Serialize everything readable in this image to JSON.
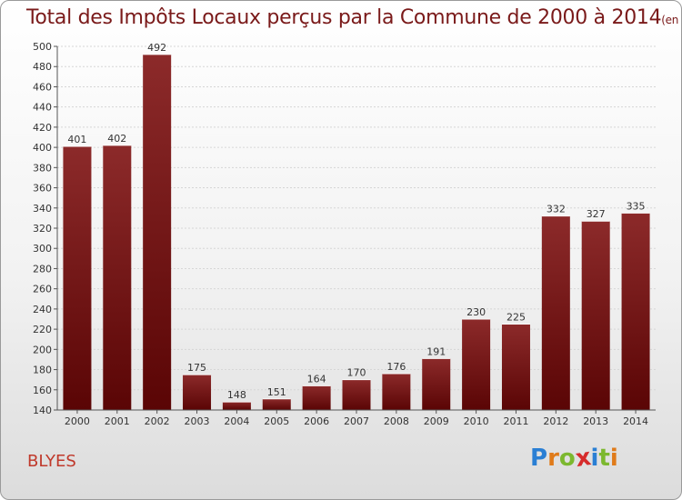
{
  "title": "Total des Impôts Locaux perçus par la Commune de 2000 à 2014",
  "unit": "(en milliers d'€)",
  "commune": "BLYES",
  "logo": {
    "letters": [
      "P",
      "r",
      "o",
      "x",
      "i",
      "t",
      "i"
    ],
    "colors": [
      "#2a7fd4",
      "#e07b1a",
      "#7cb82f",
      "#d62b2b",
      "#2a7fd4",
      "#7cb82f",
      "#e07b1a"
    ]
  },
  "chart_data": {
    "type": "bar",
    "categories": [
      "2000",
      "2001",
      "2002",
      "2003",
      "2004",
      "2005",
      "2006",
      "2007",
      "2008",
      "2009",
      "2010",
      "2011",
      "2012",
      "2013",
      "2014"
    ],
    "values": [
      401,
      402,
      492,
      175,
      148,
      151,
      164,
      170,
      176,
      191,
      230,
      225,
      332,
      327,
      335
    ],
    "ylim": [
      140,
      500
    ],
    "yticks": [
      140,
      160,
      180,
      200,
      220,
      240,
      260,
      280,
      300,
      320,
      340,
      360,
      380,
      400,
      420,
      440,
      460,
      480,
      500
    ],
    "grid": true,
    "bar_color": "#7a1a1a"
  }
}
